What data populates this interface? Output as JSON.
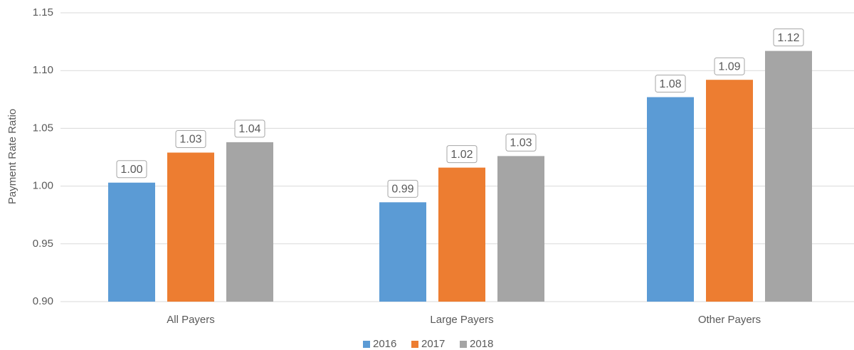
{
  "chart_data": {
    "type": "bar",
    "y_label": "Payment Rate Ratio",
    "categories": [
      "All Payers",
      "Large Payers",
      "Other Payers"
    ],
    "series": [
      {
        "name": "2016",
        "color": "#5b9bd5",
        "values": [
          1.003,
          0.986,
          1.077
        ],
        "value_labels": [
          "1.00",
          "0.99",
          "1.08"
        ]
      },
      {
        "name": "2017",
        "color": "#ed7d31",
        "values": [
          1.029,
          1.016,
          1.092
        ],
        "value_labels": [
          "1.03",
          "1.02",
          "1.09"
        ]
      },
      {
        "name": "2018",
        "color": "#a5a5a5",
        "values": [
          1.038,
          1.026,
          1.117
        ],
        "value_labels": [
          "1.04",
          "1.03",
          "1.12"
        ]
      }
    ],
    "ylim": [
      0.9,
      1.15
    ],
    "yticks": [
      {
        "value": 0.9,
        "label": "0.90"
      },
      0.95,
      {
        "value": 1.0,
        "label": "1.00"
      },
      1.05,
      {
        "value": 1.1,
        "label": "1.10"
      },
      1.15
    ],
    "grid": true,
    "legend": "bottom"
  }
}
